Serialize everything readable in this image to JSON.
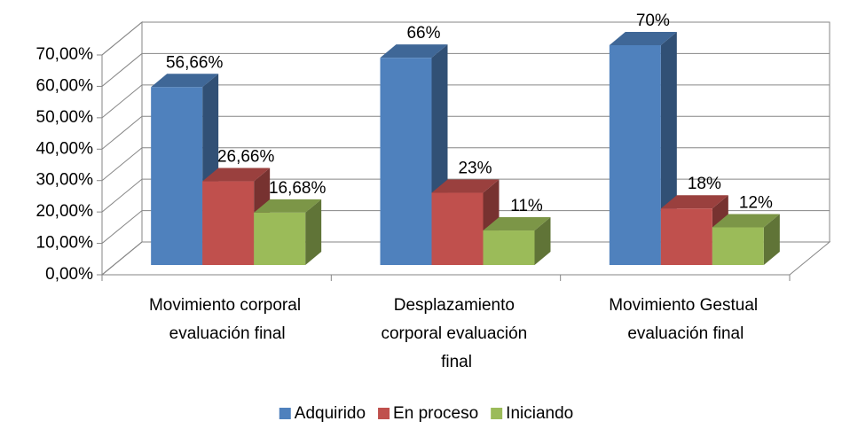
{
  "chart_data": {
    "type": "bar3d",
    "categories": [
      "Movimiento corporal evaluación final",
      "Desplazamiento corporal evaluación final",
      "Movimiento Gestual evaluación final"
    ],
    "series": [
      {
        "name": "Adquirido",
        "color": "#4f81bd",
        "values": [
          56.66,
          66,
          70
        ],
        "value_labels": [
          "56,66%",
          "66%",
          "70%"
        ]
      },
      {
        "name": "En proceso",
        "color": "#c0504d",
        "values": [
          26.66,
          23,
          18
        ],
        "value_labels": [
          "26,66%",
          "23%",
          "18%"
        ]
      },
      {
        "name": "Iniciando",
        "color": "#9bbb59",
        "values": [
          16.68,
          11,
          12
        ],
        "value_labels": [
          "16,68%",
          "11%",
          "12%"
        ]
      }
    ],
    "ylim": [
      0,
      70
    ],
    "yticks": [
      {
        "value": 0,
        "label": "0,00%"
      },
      {
        "value": 10,
        "label": "10,00%"
      },
      {
        "value": 20,
        "label": "20,00%"
      },
      {
        "value": 30,
        "label": "30,00%"
      },
      {
        "value": 40,
        "label": "40,00%"
      },
      {
        "value": 50,
        "label": "50,00%"
      },
      {
        "value": 60,
        "label": "60,00%"
      },
      {
        "value": 70,
        "label": "70,00%"
      }
    ],
    "grid": true,
    "legend": "bottom"
  }
}
